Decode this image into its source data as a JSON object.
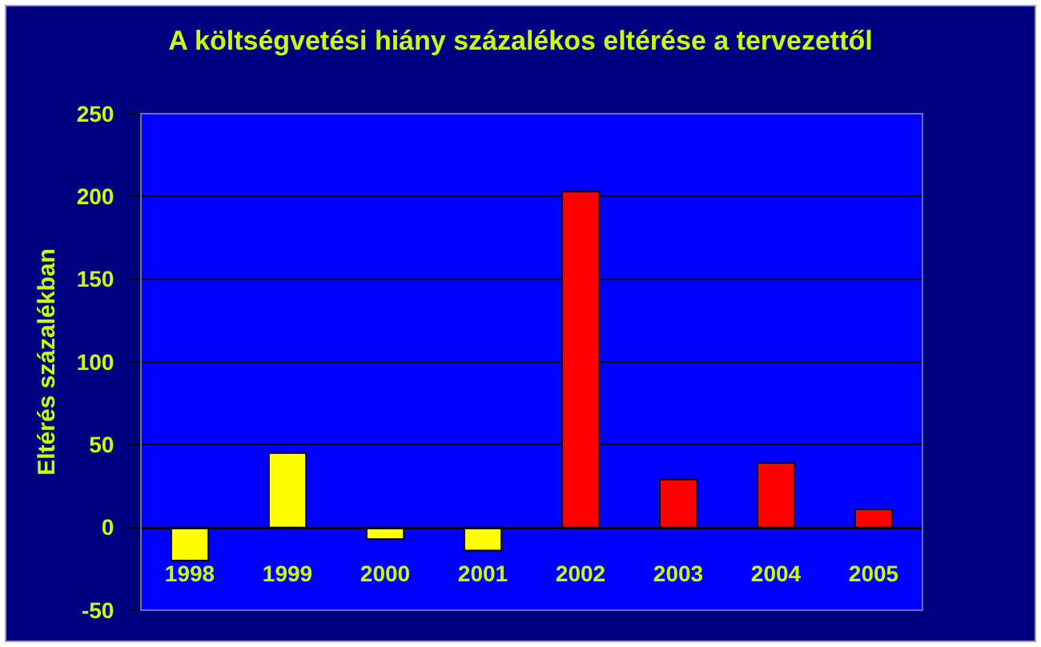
{
  "chart_data": {
    "type": "bar",
    "title": "A költségvetési hiány százalékos eltérése a tervezettől",
    "ylabel": "Eltérés százalékban",
    "categories": [
      "1998",
      "1999",
      "2000",
      "2001",
      "2002",
      "2003",
      "2004",
      "2005"
    ],
    "values": [
      -20,
      45,
      -7,
      -14,
      203,
      29,
      39,
      11
    ],
    "colors": [
      "#ffff00",
      "#ffff00",
      "#ffff00",
      "#ffff00",
      "#ff0000",
      "#ff0000",
      "#ff0000",
      "#ff0000"
    ],
    "ylim": [
      -50,
      250
    ],
    "yticks": [
      -50,
      0,
      50,
      100,
      150,
      200,
      250
    ],
    "grid": "y"
  }
}
